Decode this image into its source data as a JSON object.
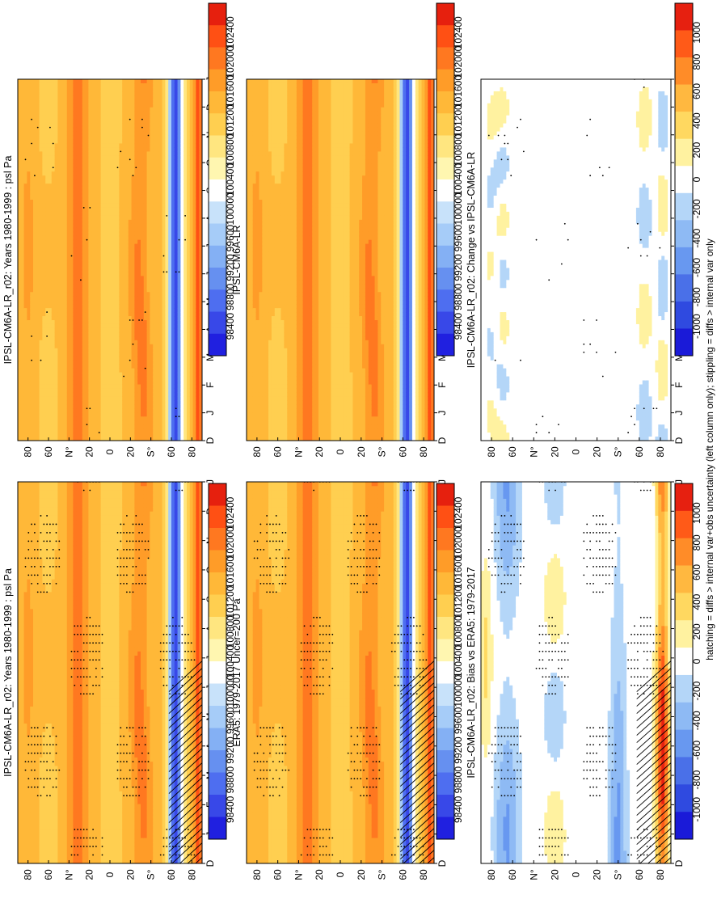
{
  "figure": {
    "footnote": "hatching = diffs > internal var+obs uncertainty (left column only); stippling = diffs > internal var only"
  },
  "colors": {
    "field": [
      "#2020e0",
      "#3848e8",
      "#4e6ef0",
      "#6690f0",
      "#84b0f4",
      "#a6ccf8",
      "#c8e2fa",
      "#ffffff",
      "#fff6b0",
      "#ffe680",
      "#ffcf50",
      "#ffb838",
      "#ff9c28",
      "#ff7820",
      "#ff5014",
      "#e6200e"
    ],
    "diff": [
      "#1a1ad8",
      "#2f4ae0",
      "#4a70e8",
      "#6898f0",
      "#8ebaf4",
      "#b4d6f8",
      "#ffffff",
      "#fff2a0",
      "#ffd860",
      "#ffb840",
      "#ff8c28",
      "#ff5a18",
      "#e62010"
    ]
  },
  "chart_data": [
    {
      "type": "heatmap",
      "title": "IPSL-CM6A-LR_r02: Years 1980-1999 : psl Pa",
      "x_ticks": [
        "D",
        "J",
        "F",
        "M",
        "A",
        "M",
        "J",
        "J",
        "A",
        "S",
        "O",
        "N",
        "D",
        "J"
      ],
      "y_ticks": [
        "80",
        "60",
        "N°",
        "20",
        "0",
        "20",
        "S°",
        "60",
        "80"
      ],
      "colorbar_ticks": [
        "102400",
        "102000",
        "101600",
        "101200",
        "100800",
        "100400",
        "100000",
        "99600",
        "99200",
        "98800",
        "98400"
      ],
      "colorbar_kind": "field",
      "field": "mean",
      "stipple": "heavy",
      "hatch": true
    },
    {
      "type": "heatmap",
      "title": "IPSL-CM6A-LR_r02: Years 1980-1999 : psl Pa",
      "x_ticks": [
        "D",
        "J",
        "F",
        "M",
        "A",
        "M",
        "J",
        "J",
        "A",
        "S",
        "O",
        "N",
        "D",
        "J"
      ],
      "y_ticks": [
        "80",
        "60",
        "N°",
        "20",
        "0",
        "20",
        "S°",
        "60",
        "80"
      ],
      "colorbar_ticks": [
        "102400",
        "102000",
        "101600",
        "101200",
        "100800",
        "100400",
        "100000",
        "99600",
        "99200",
        "98800",
        "98400"
      ],
      "colorbar_kind": "field",
      "field": "mean",
      "stipple": "light",
      "hatch": false
    },
    {
      "type": "heatmap",
      "title": "ERA5: 1979-2017 Uncer=200 Pa",
      "x_ticks": [
        "D",
        "J",
        "F",
        "M",
        "A",
        "M",
        "J",
        "J",
        "A",
        "S",
        "O",
        "N",
        "D",
        "J"
      ],
      "y_ticks": [
        "80",
        "60",
        "N°",
        "20",
        "0",
        "20",
        "S°",
        "60",
        "80"
      ],
      "colorbar_ticks": [
        "102400",
        "102000",
        "101600",
        "101200",
        "100800",
        "100400",
        "100000",
        "99600",
        "99200",
        "98800",
        "98400"
      ],
      "colorbar_kind": "field",
      "field": "mean",
      "stipple": "heavy",
      "hatch": true
    },
    {
      "type": "heatmap",
      "title": "IPSL-CM6A-LR",
      "x_ticks": [
        "D",
        "J",
        "F",
        "M",
        "A",
        "M",
        "J",
        "J",
        "A",
        "S",
        "O",
        "N",
        "D",
        "J"
      ],
      "y_ticks": [
        "80",
        "60",
        "N°",
        "20",
        "0",
        "20",
        "S°",
        "60",
        "80"
      ],
      "colorbar_ticks": [
        "102400",
        "102000",
        "101600",
        "101200",
        "100800",
        "100400",
        "100000",
        "99600",
        "99200",
        "98800",
        "98400"
      ],
      "colorbar_kind": "field",
      "field": "mean",
      "stipple": "none",
      "hatch": false
    },
    {
      "type": "heatmap",
      "title": "IPSL-CM6A-LR_r02: Bias vs ERA5: 1979-2017",
      "x_ticks": [
        "D",
        "J",
        "F",
        "M",
        "A",
        "M",
        "J",
        "J",
        "A",
        "S",
        "O",
        "N",
        "D",
        "J"
      ],
      "y_ticks": [
        "80",
        "60",
        "N°",
        "20",
        "0",
        "20",
        "S°",
        "60",
        "80"
      ],
      "colorbar_ticks": [
        "1000",
        "800",
        "600",
        "400",
        "200",
        "0",
        "-200",
        "-400",
        "-600",
        "-800",
        "-1000"
      ],
      "colorbar_kind": "diff",
      "field": "bias",
      "stipple": "heavy",
      "hatch": true
    },
    {
      "type": "heatmap",
      "title": "IPSL-CM6A-LR_r02: Change vs IPSL-CM6A-LR",
      "x_ticks": [
        "D",
        "J",
        "F",
        "M",
        "A",
        "M",
        "J",
        "J",
        "A",
        "S",
        "O",
        "N",
        "D",
        "J"
      ],
      "y_ticks": [
        "80",
        "60",
        "N°",
        "20",
        "0",
        "20",
        "S°",
        "60",
        "80"
      ],
      "colorbar_ticks": [
        "1000",
        "800",
        "600",
        "400",
        "200",
        "0",
        "-200",
        "-400",
        "-600",
        "-800",
        "-1000"
      ],
      "colorbar_kind": "diff",
      "field": "change",
      "stipple": "light",
      "hatch": false
    }
  ]
}
